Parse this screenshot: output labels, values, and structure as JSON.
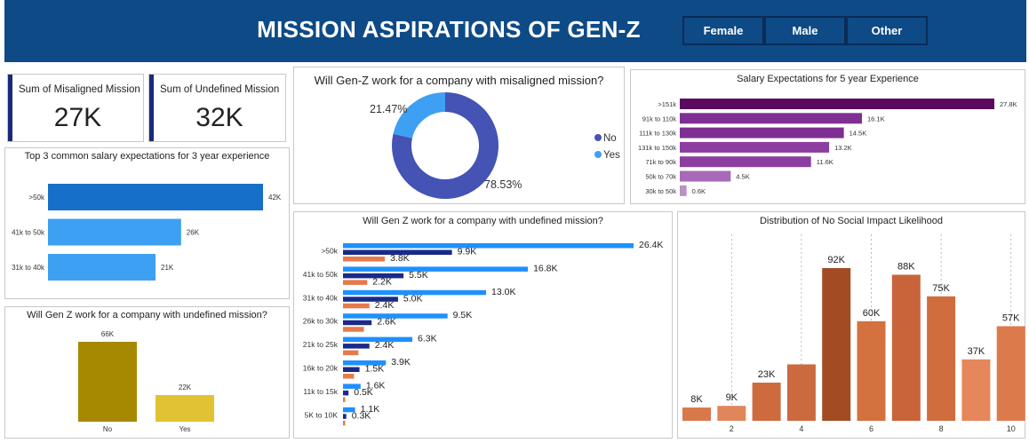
{
  "header": {
    "title": "MISSION ASPIRATIONS OF GEN-Z"
  },
  "slicers": [
    "Female",
    "Male",
    "Other"
  ],
  "kpis": [
    {
      "label": "Sum of Misaligned Mission",
      "value": "27K"
    },
    {
      "label": "Sum of Undefined Mission",
      "value": "32K"
    }
  ],
  "chart_data": [
    {
      "id": "top3",
      "type": "bar",
      "orientation": "horizontal",
      "title": "Top 3 common salary expectations for 3 year experience",
      "categories": [
        ">50k",
        "41k to 50k",
        "31k to 40k"
      ],
      "values": [
        42,
        26,
        21
      ],
      "labels": [
        "42K",
        "26K",
        "21K"
      ],
      "colors": [
        "#1670c9",
        "#3ea0f2",
        "#3ea0f2"
      ]
    },
    {
      "id": "undef_col",
      "type": "bar",
      "title": "Will Gen Z work for a company with undefined mission?",
      "categories": [
        "No",
        "Yes"
      ],
      "values": [
        66,
        22
      ],
      "labels": [
        "66K",
        "22K"
      ],
      "colors": [
        "#a68900",
        "#e1c233"
      ]
    },
    {
      "id": "donut",
      "type": "pie",
      "title": "Will Gen-Z work for a company with misaligned mission?",
      "categories": [
        "No",
        "Yes"
      ],
      "values": [
        78.53,
        21.47
      ],
      "labels": [
        "78.53%",
        "21.47%"
      ],
      "colors": [
        "#4453b4",
        "#3ea0f2"
      ],
      "legend": "right"
    },
    {
      "id": "salary5",
      "type": "bar",
      "orientation": "horizontal",
      "title": "Salary Expectations for 5 year Experience",
      "categories": [
        ">151k",
        "91k to 110k",
        "111k to 130k",
        "131k to 150k",
        "71k to 90k",
        "50k to 70k",
        "30k to 50k"
      ],
      "values": [
        27.8,
        16.1,
        14.5,
        13.2,
        11.6,
        4.5,
        0.6
      ],
      "labels": [
        "27.8K",
        "16.1K",
        "14.5K",
        "13.2K",
        "11.6K",
        "4.5K",
        "0.6K"
      ],
      "colors": [
        "#5b0a5e",
        "#7f2f92",
        "#7f2f92",
        "#8c3ea0",
        "#8c3ea0",
        "#a76ab8",
        "#b990c8"
      ]
    },
    {
      "id": "undef_grouped",
      "type": "bar",
      "orientation": "horizontal",
      "title": "Will Gen Z work for a company with undefined mission?",
      "categories": [
        ">50k",
        "41k to 50k",
        "31k to 40k",
        "26k to 30k",
        "21k to 25k",
        "16k to 20k",
        "11k to 15k",
        "5K to 10K"
      ],
      "series": [
        {
          "values": [
            26.4,
            16.8,
            13.0,
            9.5,
            6.3,
            3.9,
            1.6,
            1.1
          ],
          "labels": [
            "26.4K",
            "16.8K",
            "13.0K",
            "9.5K",
            "6.3K",
            "3.9K",
            "1.6K",
            "1.1K"
          ],
          "color": "#1e90ff"
        },
        {
          "values": [
            9.9,
            5.5,
            5.0,
            2.6,
            2.4,
            1.5,
            0.5,
            0.3
          ],
          "labels": [
            "9.9K",
            "5.5K",
            "5.0K",
            "2.6K",
            "2.4K",
            "1.5K",
            "0.5K",
            "0.3K"
          ],
          "color": "#1a2a8a"
        },
        {
          "values": [
            3.8,
            2.2,
            2.4,
            1.9,
            1.4,
            1.0,
            0.2,
            0.2
          ],
          "labels": [
            "3.8K",
            "2.2K",
            "2.4K",
            "",
            "",
            "",
            "",
            ""
          ],
          "color": "#e57a4a"
        }
      ]
    },
    {
      "id": "dist",
      "type": "bar",
      "title": "Distribution of No Social Impact Likelihood",
      "x": [
        1,
        2,
        3,
        4,
        5,
        6,
        7,
        8,
        9,
        10
      ],
      "values": [
        8,
        9,
        23,
        34,
        92,
        60,
        88,
        75,
        37,
        57
      ],
      "labels": [
        "8K",
        "9K",
        "23K",
        "",
        "92K",
        "60K",
        "88K",
        "75K",
        "37K",
        "57K"
      ],
      "xticks": [
        "2",
        "4",
        "6",
        "8",
        "10"
      ],
      "colors": [
        "#d9784b",
        "#e1865a",
        "#cd6b3f",
        "#cb6a3e",
        "#a34b22",
        "#d3713f",
        "#c9643a",
        "#cf6d3f",
        "#e5875a",
        "#dc7a4c"
      ]
    }
  ]
}
